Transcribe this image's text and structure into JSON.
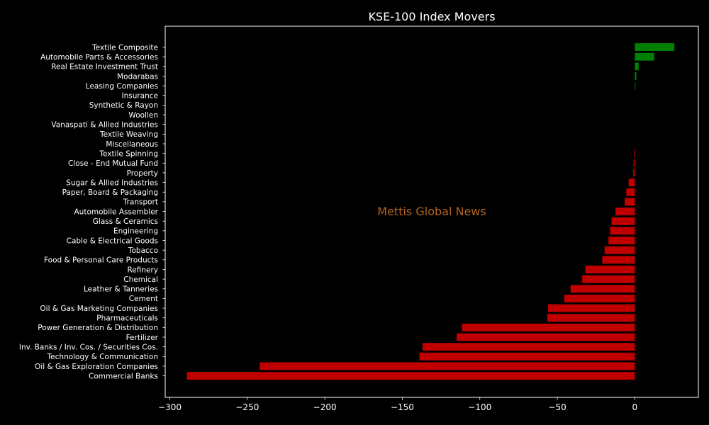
{
  "chart_data": {
    "type": "bar",
    "orientation": "horizontal",
    "title": "KSE-100 Index Movers",
    "watermark": "Mettis Global News",
    "xlabel": "",
    "ylabel": "",
    "xlim": [
      -303,
      41
    ],
    "xticks": [
      -300,
      -250,
      -200,
      -150,
      -100,
      -50,
      0
    ],
    "xtick_labels": [
      "−300",
      "−250",
      "−200",
      "−150",
      "−100",
      "−50",
      "0"
    ],
    "grid": false,
    "colors": {
      "positive": "#008000",
      "negative": "#c00000",
      "background": "#000000",
      "axes": "#ffffff"
    },
    "categories": [
      "Textile Composite",
      "Automobile Parts & Accessories",
      "Real Estate Investment Trust",
      "Modarabas",
      "Leasing Companies",
      "Insurance",
      "Synthetic & Rayon",
      "Woollen",
      "Vanaspati & Allied Industries",
      "Textile Weaving",
      "Miscellaneous",
      "Textile Spinning",
      "Close - End Mutual Fund",
      "Property",
      "Sugar & Allied Industries",
      "Paper, Board & Packaging",
      "Transport",
      "Automobile Assembler",
      "Glass & Ceramics",
      "Engineering",
      "Cable & Electrical Goods",
      "Tobacco",
      "Food & Personal Care Products",
      "Refinery",
      "Chemical",
      "Leather & Tanneries",
      "Cement",
      "Oil & Gas Marketing Companies",
      "Pharmaceuticals",
      "Power Generation & Distribution",
      "Fertilizer",
      "Inv. Banks / Inv. Cos. / Securities Cos.",
      "Technology & Communication",
      "Oil & Gas Exploration Companies",
      "Commercial Banks"
    ],
    "values": [
      25.5,
      12.5,
      2.5,
      1.0,
      0.4,
      0,
      0,
      0,
      0,
      0,
      0,
      -0.5,
      -0.8,
      -1.0,
      -4.0,
      -5.5,
      -6.5,
      -12.5,
      -15.0,
      -16.0,
      -17.0,
      -19.5,
      -21.0,
      -32.0,
      -34.0,
      -41.5,
      -45.5,
      -56.0,
      -56.5,
      -111.5,
      -115.0,
      -137.0,
      -139.0,
      -242.0,
      -289.0
    ]
  }
}
